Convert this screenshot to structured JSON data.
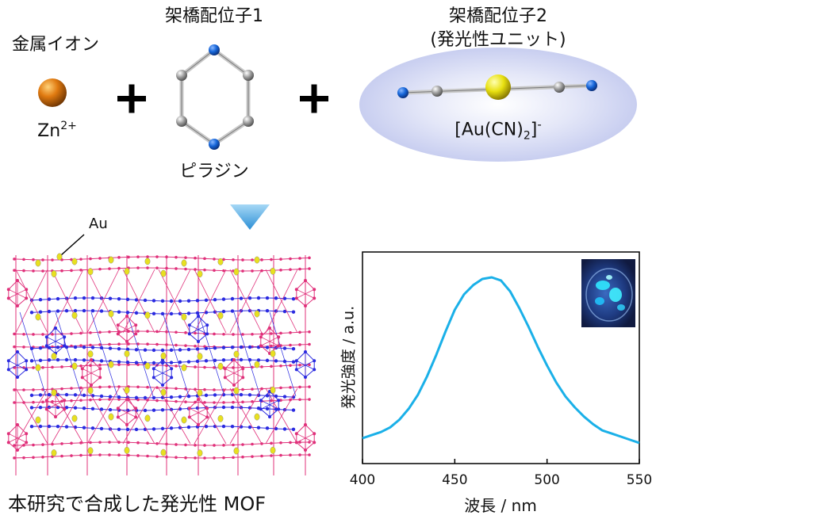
{
  "scheme": {
    "metal_ion": {
      "label": "金属イオン",
      "ion": "Zn",
      "charge": "2+"
    },
    "ligand1": {
      "label": "架橋配位子1",
      "name": "ピラジン"
    },
    "ligand2": {
      "label_line1": "架橋配位子2",
      "label_line2": "(発光性ユニット)",
      "formula_main": "[Au(CN)",
      "formula_sub": "2",
      "formula_close": "]",
      "formula_sup": "-"
    },
    "plus_symbol": "+",
    "mof_label": "Au",
    "mof_caption": "本研究で合成した発光性 MOF"
  },
  "colors": {
    "zn": "#e07a10",
    "nitrogen": "#1565d8",
    "carbon": "#9a9a9a",
    "gold": "#e8e010",
    "emission": "#1ab0e8",
    "network_pink": "#e0307a",
    "network_blue": "#2a2ae0",
    "network_yellow": "#e8e020",
    "arrow": "#4aa8e0",
    "halo": "#cdd3f3"
  },
  "chart_data": {
    "type": "line",
    "xlabel": "波長 / nm",
    "ylabel": "発光強度 / a.u.",
    "xlim": [
      400,
      550
    ],
    "xticks": [
      400,
      450,
      500,
      550
    ],
    "series": [
      {
        "x": [
          400,
          405,
          410,
          415,
          420,
          425,
          430,
          435,
          440,
          445,
          450,
          455,
          460,
          465,
          470,
          475,
          480,
          485,
          490,
          495,
          500,
          505,
          510,
          515,
          520,
          525,
          530,
          535,
          540,
          545,
          550
        ],
        "y": [
          0.0,
          0.02,
          0.04,
          0.07,
          0.12,
          0.19,
          0.28,
          0.4,
          0.54,
          0.69,
          0.83,
          0.93,
          0.99,
          1.03,
          1.04,
          1.02,
          0.95,
          0.84,
          0.72,
          0.59,
          0.47,
          0.36,
          0.27,
          0.2,
          0.14,
          0.09,
          0.05,
          0.03,
          0.01,
          -0.01,
          -0.03
        ]
      }
    ],
    "inset": "photo-of-blue-emitting-crystals"
  }
}
